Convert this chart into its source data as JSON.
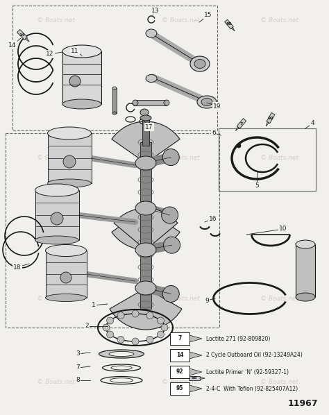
{
  "background_color": "#f2f0ec",
  "watermark_text": "© Boats.net",
  "part_number": "11967",
  "legend_items": [
    {
      "num": "7",
      "label": "Loctite 271 (92-809820)"
    },
    {
      "num": "14",
      "label": "2 Cycle Outboard Oil (92-13249A24)"
    },
    {
      "num": "92",
      "label": "Loctite Primer ‘N’ (92-59327-1)"
    },
    {
      "num": "95",
      "label": "2-4-C  With Teflon (92-825407A12)"
    }
  ],
  "figsize": [
    4.74,
    5.98
  ],
  "dpi": 100
}
